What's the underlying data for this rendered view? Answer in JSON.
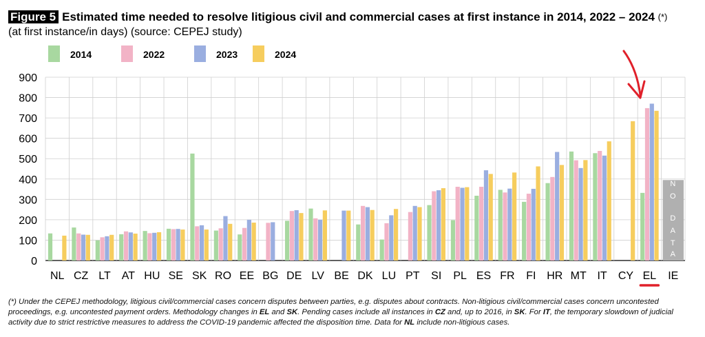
{
  "figure_label": "Figure 5",
  "title": "Estimated time needed to resolve litigious civil and commercial cases at first instance in 2014, 2022 – 2024",
  "title_note": "(*)",
  "subtitle": "(at first instance/in days) (source: CEPEJ study)",
  "footnote_parts": {
    "p1": "(*) Under the CEPEJ methodology, litigious civil/commercial cases concern disputes between parties, e.g. disputes about contracts. Non-litigious civil/commercial cases concern uncontested proceedings, e.g. uncontested payment orders. Methodology changes in ",
    "b1": "EL",
    "p2": " and ",
    "b2": "SK",
    "p3": ". Pending cases include all instances in ",
    "b3": "CZ",
    "p4": " and, up to 2016, in ",
    "b4": "SK",
    "p5": ". For ",
    "b5": "IT",
    "p6": ", the temporary slowdown of judicial activity due to strict restrictive measures to address the COVID-19 pandemic affected the disposition time. Data for ",
    "b6": "NL",
    "p7": " include non-litigious cases."
  },
  "colors": {
    "2014": "#a8d8a0",
    "2022": "#f2b3c6",
    "2023": "#9aaee0",
    "2024": "#f6cd5e",
    "nodata_box": "#b0b0b0",
    "arrow": "#e0202a",
    "grid": "#cfcfcf"
  },
  "chart_data": {
    "type": "bar",
    "ylim": [
      0,
      900
    ],
    "yticks": [
      0,
      100,
      200,
      300,
      400,
      500,
      600,
      700,
      800,
      900
    ],
    "grid": true,
    "legend_position": "top-left",
    "categories": [
      "NL",
      "CZ",
      "LT",
      "AT",
      "HU",
      "SE",
      "SK",
      "RO",
      "EE",
      "BG",
      "DE",
      "LV",
      "BE",
      "DK",
      "LU",
      "PT",
      "SI",
      "PL",
      "ES",
      "FR",
      "FI",
      "HR",
      "MT",
      "IT",
      "CY",
      "EL",
      "IE"
    ],
    "series": [
      {
        "name": "2014",
        "values": [
          133,
          162,
          99,
          129,
          145,
          156,
          525,
          147,
          128,
          null,
          195,
          255,
          null,
          177,
          103,
          null,
          272,
          198,
          318,
          347,
          288,
          380,
          535,
          527,
          null,
          332,
          null
        ]
      },
      {
        "name": "2022",
        "values": [
          null,
          133,
          114,
          143,
          134,
          154,
          168,
          158,
          160,
          185,
          243,
          207,
          null,
          268,
          183,
          238,
          340,
          362,
          362,
          334,
          328,
          410,
          492,
          538,
          null,
          748,
          null
        ]
      },
      {
        "name": "2023",
        "values": [
          null,
          127,
          119,
          138,
          136,
          155,
          173,
          218,
          200,
          188,
          247,
          200,
          245,
          262,
          222,
          268,
          345,
          357,
          443,
          353,
          352,
          533,
          454,
          515,
          null,
          770,
          null
        ]
      },
      {
        "name": "2024",
        "values": [
          122,
          126,
          126,
          132,
          139,
          152,
          152,
          180,
          186,
          null,
          233,
          246,
          245,
          248,
          253,
          262,
          355,
          360,
          425,
          432,
          462,
          469,
          493,
          585,
          684,
          735,
          null
        ]
      }
    ],
    "annotations": {
      "nodata_category": "IE",
      "nodata_label": "NO DATA",
      "highlighted_category": "EL"
    }
  }
}
